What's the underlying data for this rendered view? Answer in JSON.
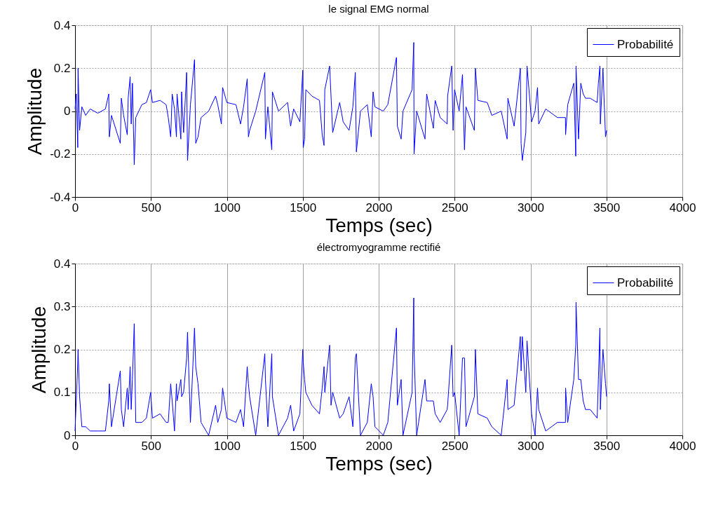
{
  "chart_data": [
    {
      "type": "line",
      "title": "le signal EMG normal",
      "xlabel": "Temps (sec)",
      "ylabel": "Amplitude",
      "x": [
        0,
        8,
        18,
        20,
        30,
        45,
        70,
        100,
        150,
        200,
        222,
        226,
        240,
        298,
        305,
        320,
        344,
        350,
        363,
        370,
        378,
        390,
        400,
        440,
        470,
        498,
        510,
        560,
        600,
        614,
        630,
        640,
        655,
        668,
        672,
        697,
        702,
        715,
        735,
        741,
        760,
        787,
        795,
        810,
        830,
        880,
        926,
        940,
        964,
        972,
        1000,
        1060,
        1090,
        1110,
        1134,
        1142,
        1150,
        1190,
        1250,
        1254,
        1270,
        1296,
        1300,
        1340,
        1400,
        1420,
        1440,
        1481,
        1500,
        1503,
        1512,
        1520,
        1560,
        1610,
        1628,
        1640,
        1645,
        1677,
        1686,
        1697,
        1743,
        1766,
        1805,
        1830,
        1846,
        1853,
        1880,
        1925,
        1951,
        1963,
        1975,
        2030,
        2060,
        2117,
        2123,
        2148,
        2160,
        2220,
        2231,
        2233,
        2250,
        2305,
        2316,
        2360,
        2372,
        2405,
        2451,
        2454,
        2481,
        2490,
        2500,
        2530,
        2552,
        2565,
        2575,
        2630,
        2637,
        2653,
        2715,
        2745,
        2807,
        2846,
        2851,
        2892,
        2933,
        2938,
        2946,
        2969,
        2977,
        3007,
        3030,
        3046,
        3054,
        3100,
        3177,
        3230,
        3231,
        3245,
        3285,
        3298,
        3300,
        3316,
        3331,
        3347,
        3362,
        3393,
        3439,
        3447,
        3457,
        3460,
        3477,
        3494,
        3501
      ],
      "series": [
        {
          "name": "Probabilité",
          "color": "#0000ff",
          "values": [
            0.01,
            0.08,
            -0.17,
            0.2,
            -0.09,
            0.02,
            -0.02,
            0.01,
            -0.01,
            0.01,
            0.08,
            -0.12,
            -0.02,
            -0.15,
            0.06,
            -0.02,
            -0.11,
            0.06,
            0.16,
            -0.06,
            0.13,
            -0.25,
            -0.03,
            0.03,
            0.04,
            0.1,
            0.04,
            0.05,
            0.03,
            -0.03,
            -0.12,
            0.08,
            0.01,
            -0.12,
            0.08,
            -0.13,
            0.09,
            -0.1,
            0.18,
            -0.23,
            0.03,
            0.24,
            -0.15,
            -0.12,
            -0.03,
            0,
            0.07,
            0.03,
            -0.06,
            0.11,
            0.04,
            0.03,
            -0.06,
            0.02,
            0.15,
            -0.12,
            -0.09,
            0,
            0.18,
            -0.13,
            0.02,
            -0.18,
            0.09,
            0,
            0.04,
            -0.07,
            0.01,
            -0.05,
            0.19,
            -0.17,
            -0.13,
            0.1,
            0.07,
            0.05,
            -0.11,
            -0.16,
            0.1,
            0.21,
            0.07,
            -0.1,
            0.04,
            -0.05,
            -0.09,
            0.02,
            0.18,
            -0.19,
            0,
            0.03,
            -0.12,
            0.09,
            0.02,
            0,
            0.03,
            0.25,
            -0.07,
            -0.13,
            0,
            0.1,
            0.32,
            -0.2,
            0,
            -0.13,
            0.08,
            -0.08,
            0.05,
            -0.03,
            -0.06,
            0.07,
            0.21,
            -0.09,
            0.1,
            0,
            0.17,
            -0.18,
            0.02,
            -0.09,
            0.2,
            0.05,
            0.04,
            -0.02,
            0,
            -0.13,
            0.06,
            -0.07,
            0.2,
            -0.15,
            -0.23,
            -0.1,
            0.21,
            -0.05,
            0,
            0.11,
            -0.06,
            0.01,
            -0.03,
            -0.03,
            -0.11,
            0.03,
            0.13,
            -0.21,
            0.21,
            -0.13,
            0.13,
            0.08,
            0.06,
            0.06,
            0.04,
            0.13,
            0.21,
            -0.06,
            0.2,
            -0.12,
            -0.09
          ]
        }
      ],
      "xlim": [
        0,
        4000
      ],
      "xticks": [
        0,
        500,
        1000,
        1500,
        2000,
        2500,
        3000,
        3500,
        4000
      ],
      "ylim": [
        -0.4,
        0.4
      ],
      "yticks": [
        {
          "value": -0.4,
          "label": "-0.4"
        },
        {
          "value": -0.2,
          "label": "-0.2"
        },
        0,
        {
          "value": 0.2,
          "label": "0.2"
        },
        {
          "value": 0.4,
          "label": "0.4"
        }
      ],
      "grid": true,
      "legend": "top right"
    },
    {
      "type": "line",
      "title": "électromyogramme rectifié",
      "xlabel": "Temps (sec)",
      "ylabel": "Amplitude",
      "x": [
        0,
        8,
        18,
        20,
        30,
        45,
        70,
        100,
        150,
        200,
        222,
        226,
        240,
        298,
        305,
        320,
        344,
        350,
        363,
        370,
        378,
        390,
        400,
        440,
        470,
        498,
        510,
        560,
        600,
        614,
        630,
        640,
        655,
        668,
        672,
        697,
        702,
        715,
        735,
        741,
        760,
        787,
        795,
        810,
        830,
        880,
        926,
        940,
        964,
        972,
        1000,
        1060,
        1090,
        1110,
        1134,
        1142,
        1150,
        1190,
        1250,
        1254,
        1270,
        1296,
        1300,
        1340,
        1400,
        1420,
        1440,
        1481,
        1500,
        1503,
        1512,
        1520,
        1560,
        1610,
        1628,
        1640,
        1645,
        1677,
        1686,
        1697,
        1743,
        1766,
        1805,
        1830,
        1846,
        1853,
        1880,
        1925,
        1951,
        1963,
        1975,
        2030,
        2060,
        2117,
        2123,
        2148,
        2160,
        2220,
        2231,
        2233,
        2250,
        2305,
        2316,
        2360,
        2372,
        2405,
        2451,
        2454,
        2481,
        2490,
        2500,
        2530,
        2552,
        2565,
        2575,
        2630,
        2637,
        2653,
        2715,
        2745,
        2807,
        2846,
        2851,
        2892,
        2933,
        2938,
        2946,
        2969,
        2977,
        3007,
        3030,
        3046,
        3054,
        3100,
        3177,
        3230,
        3231,
        3245,
        3285,
        3298,
        3300,
        3316,
        3331,
        3347,
        3362,
        3393,
        3439,
        3447,
        3457,
        3460,
        3477,
        3494,
        3501
      ],
      "series": [
        {
          "name": "Probabilité",
          "color": "#0000ff",
          "values": [
            0.01,
            0.08,
            0.17,
            0.2,
            0.09,
            0.02,
            0.02,
            0.01,
            0.01,
            0.01,
            0.08,
            0.12,
            0.02,
            0.15,
            0.06,
            0.02,
            0.11,
            0.06,
            0.16,
            0.06,
            0.13,
            0.26,
            0.03,
            0.03,
            0.04,
            0.1,
            0.04,
            0.05,
            0.03,
            0.03,
            0.12,
            0.08,
            0.01,
            0.12,
            0.08,
            0.13,
            0.09,
            0.1,
            0.18,
            0.24,
            0.03,
            0.25,
            0.16,
            0.12,
            0.03,
            0,
            0.07,
            0.03,
            0.06,
            0.11,
            0.04,
            0.03,
            0.06,
            0.02,
            0.16,
            0.12,
            0.09,
            0,
            0.19,
            0.13,
            0.02,
            0.19,
            0.09,
            0,
            0.04,
            0.07,
            0.01,
            0.05,
            0.2,
            0.17,
            0.13,
            0.1,
            0.07,
            0.05,
            0.11,
            0.16,
            0.1,
            0.21,
            0.07,
            0.1,
            0.04,
            0.05,
            0.09,
            0.02,
            0.18,
            0.19,
            0,
            0.03,
            0.12,
            0.09,
            0.02,
            0,
            0.03,
            0.25,
            0.07,
            0.13,
            0,
            0.1,
            0.32,
            0.2,
            0,
            0.13,
            0.08,
            0.08,
            0.05,
            0.03,
            0.06,
            0.07,
            0.21,
            0.09,
            0.1,
            0,
            0.18,
            0.18,
            0.02,
            0.09,
            0.2,
            0.05,
            0.04,
            0.02,
            0,
            0.13,
            0.06,
            0.07,
            0.23,
            0.15,
            0.23,
            0.1,
            0.22,
            0.05,
            0,
            0.11,
            0.06,
            0.01,
            0.03,
            0.03,
            0.11,
            0.03,
            0.13,
            0.21,
            0.31,
            0.13,
            0.13,
            0.08,
            0.06,
            0.06,
            0.04,
            0.13,
            0.25,
            0.06,
            0.2,
            0.12,
            0.09
          ]
        }
      ],
      "xlim": [
        0,
        4000
      ],
      "xticks": [
        0,
        500,
        1000,
        1500,
        2000,
        2500,
        3000,
        3500,
        4000
      ],
      "ylim": [
        0,
        0.4
      ],
      "yticks": [
        0,
        {
          "value": 0.1,
          "label": "0.1"
        },
        {
          "value": 0.2,
          "label": "0.2"
        },
        {
          "value": 0.3,
          "label": "0.3"
        },
        {
          "value": 0.4,
          "label": "0.4"
        }
      ],
      "grid": true,
      "legend": "top right"
    }
  ]
}
